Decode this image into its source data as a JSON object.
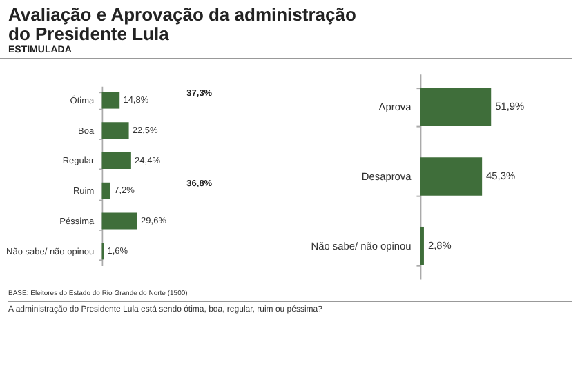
{
  "chart_data": [
    {
      "type": "bar",
      "orientation": "horizontal",
      "title": "Avaliação e Aprovação da administração do Presidente Lula",
      "subtitle": "ESTIMULADA",
      "categories": [
        "Ótima",
        "Boa",
        "Regular",
        "Ruim",
        "Péssima",
        "Não sabe/ não opinou"
      ],
      "values": [
        14.8,
        22.5,
        24.4,
        7.2,
        29.6,
        1.6
      ],
      "value_labels": [
        "14,8%",
        "22,5%",
        "24,4%",
        "7,2%",
        "29,6%",
        "1,6%"
      ],
      "color": "#3f6e3a",
      "tick_labels": "y",
      "annotations": [
        "37,3%",
        "36,8%"
      ]
    },
    {
      "type": "bar",
      "orientation": "horizontal",
      "categories": [
        "Aprova",
        "Desaprova",
        "Não sabe/ não opinou"
      ],
      "values": [
        51.9,
        45.3,
        2.8
      ],
      "value_labels": [
        "51,9%",
        "45,3%",
        "2,8%"
      ],
      "color": "#3f6e3a",
      "tick_labels": "y",
      "annotations": [
        "BASE: Eleitores do Estado do Rio Grande do Norte (1500)",
        "A administração do Presidente Lula está sendo ótima, boa, regular, ruim ou péssima?"
      ]
    }
  ]
}
